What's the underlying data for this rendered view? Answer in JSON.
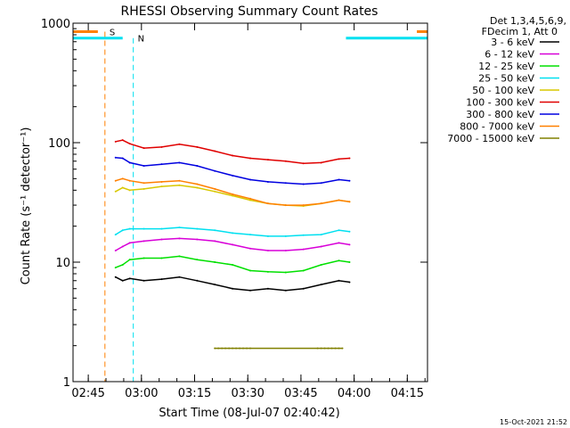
{
  "chart_data": {
    "type": "line",
    "title": "RHESSI Observing Summary Count Rates",
    "xlabel": "Start Time (08-Jul-07 02:40:42)",
    "ylabel": "Count Rate (s⁻¹ detector⁻¹)",
    "yscale": "log",
    "ylim": [
      1,
      1000
    ],
    "xlim_minutes": [
      0,
      100
    ],
    "x_ticks": [
      "02:45",
      "03:00",
      "03:15",
      "03:30",
      "03:45",
      "04:00",
      "04:15"
    ],
    "y_ticks": [
      "1",
      "10",
      "100",
      "1000"
    ],
    "legend_header": [
      "Det 1,3,4,5,6,9,",
      "FDecim 1, Att 0"
    ],
    "legend_position": "right",
    "series": [
      {
        "name": "3 - 6 keV",
        "color": "#000000",
        "x": [
          12,
          14,
          16,
          20,
          25,
          30,
          35,
          40,
          45,
          50,
          55,
          60,
          65,
          70,
          75,
          78
        ],
        "values": [
          7.5,
          7,
          7.3,
          7,
          7.2,
          7.5,
          7,
          6.5,
          6,
          5.8,
          6,
          5.8,
          6,
          6.5,
          7,
          6.8
        ]
      },
      {
        "name": "6 - 12 keV",
        "color": "#d800d8",
        "x": [
          12,
          14,
          16,
          20,
          25,
          30,
          35,
          40,
          45,
          50,
          55,
          60,
          65,
          70,
          75,
          78
        ],
        "values": [
          12.5,
          13.5,
          14.5,
          15,
          15.5,
          15.8,
          15.5,
          15,
          14,
          13,
          12.5,
          12.5,
          12.8,
          13.5,
          14.5,
          14
        ]
      },
      {
        "name": "12 - 25 keV",
        "color": "#00e000",
        "x": [
          12,
          14,
          16,
          20,
          25,
          30,
          35,
          40,
          45,
          50,
          55,
          60,
          65,
          70,
          75,
          78
        ],
        "values": [
          9,
          9.5,
          10.5,
          10.8,
          10.8,
          11.2,
          10.5,
          10,
          9.5,
          8.5,
          8.3,
          8.2,
          8.5,
          9.5,
          10.3,
          10
        ]
      },
      {
        "name": "25 - 50 keV",
        "color": "#00e0f0",
        "x": [
          12,
          14,
          16,
          20,
          25,
          30,
          35,
          40,
          45,
          50,
          55,
          60,
          65,
          70,
          75,
          78
        ],
        "values": [
          17,
          18.5,
          19,
          19,
          19,
          19.5,
          19,
          18.5,
          17.5,
          17,
          16.5,
          16.5,
          16.8,
          17,
          18.5,
          18
        ]
      },
      {
        "name": "50 - 100 keV",
        "color": "#d8c800",
        "x": [
          12,
          14,
          16,
          20,
          25,
          30,
          35,
          40,
          45,
          50,
          55,
          60,
          65,
          70,
          75,
          78
        ],
        "values": [
          39,
          42,
          40,
          41,
          43,
          44,
          42,
          39,
          36,
          33,
          31,
          30,
          29.5,
          31,
          33,
          32
        ]
      },
      {
        "name": "100 - 300 keV",
        "color": "#e00000",
        "x": [
          12,
          14,
          16,
          20,
          25,
          30,
          35,
          40,
          45,
          50,
          55,
          60,
          65,
          70,
          75,
          78
        ],
        "values": [
          102,
          105,
          98,
          90,
          92,
          97,
          92,
          85,
          78,
          74,
          72,
          70,
          67,
          68,
          73,
          74
        ]
      },
      {
        "name": "300 - 800 keV",
        "color": "#0000e0",
        "x": [
          12,
          14,
          16,
          20,
          25,
          30,
          35,
          40,
          45,
          50,
          55,
          60,
          65,
          70,
          75,
          78
        ],
        "values": [
          75,
          74,
          68,
          64,
          66,
          68,
          64,
          58,
          53,
          49,
          47,
          46,
          45,
          46,
          49,
          48
        ]
      },
      {
        "name": "800 - 7000 keV",
        "color": "#ff8000",
        "x": [
          12,
          14,
          16,
          20,
          25,
          30,
          35,
          40,
          45,
          50,
          55,
          60,
          65,
          70,
          75,
          78
        ],
        "values": [
          48,
          50,
          48,
          46,
          47,
          48,
          45,
          41,
          37,
          34,
          31,
          30,
          30,
          31,
          33,
          32
        ]
      },
      {
        "name": "7000 - 15000 keV",
        "color": "#808000",
        "x": [
          40,
          41,
          42,
          43,
          44,
          45,
          46,
          47,
          48,
          49,
          50,
          69,
          70,
          71,
          72,
          73,
          74,
          75,
          76
        ],
        "values": [
          1.9,
          1.9,
          1.9,
          1.9,
          1.9,
          1.9,
          1.9,
          1.9,
          1.9,
          1.9,
          1.9,
          1.9,
          1.9,
          1.9,
          1.9,
          1.9,
          1.9,
          1.9,
          1.9
        ]
      }
    ],
    "flags": [
      {
        "label": "S",
        "color": "#ff8000",
        "level": 850
      },
      {
        "label": "N",
        "color": "#00e0f0",
        "level": 750
      }
    ]
  },
  "footer": {
    "timestamp": "15-Oct-2021 21:52"
  }
}
